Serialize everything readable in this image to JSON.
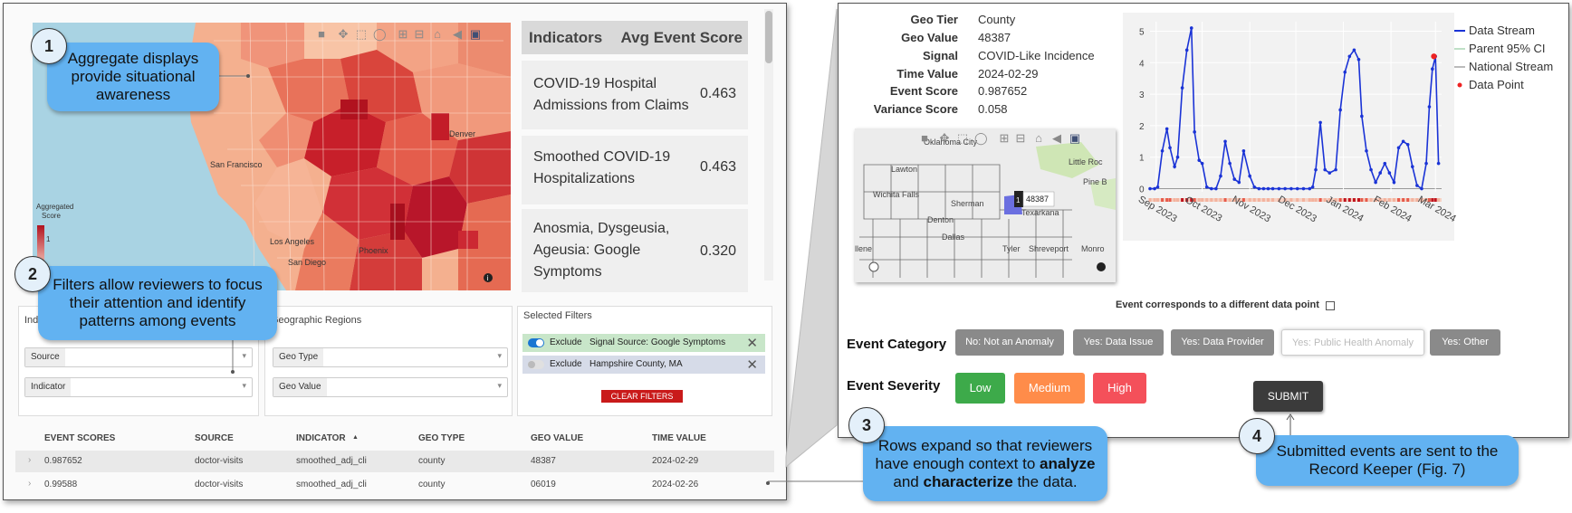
{
  "left_map": {
    "cities": [
      "Denver",
      "San Francisco",
      "Los Angeles",
      "Phoenix",
      "San Diego"
    ],
    "legend_title": "Aggregated Score",
    "legend_tick": "1"
  },
  "indicators_table": {
    "header_left": "Indicators",
    "header_right": "Avg Event Score",
    "rows": [
      {
        "name_line1": "COVID-19 Hospital",
        "name_line2": "Admissions from Claims",
        "name_line3": "",
        "score": "0.463"
      },
      {
        "name_line1": "Smoothed COVID-19",
        "name_line2": "Hospitalizations",
        "name_line3": "",
        "score": "0.463"
      },
      {
        "name_line1": "Anosmia, Dysgeusia,",
        "name_line2": "Ageusia: Google",
        "name_line3": "Symptoms",
        "score": "0.320"
      }
    ]
  },
  "filters": {
    "indicators_title": "Indicators",
    "geo_title": "Geographic Regions",
    "selected_title": "Selected Filters",
    "source_label": "Source",
    "indicator_label": "Indicator",
    "geo_type_label": "Geo Type",
    "geo_value_label": "Geo Value",
    "selected": [
      {
        "toggle": "Exclude",
        "value": "Signal Source: Google Symptoms",
        "color": "#c8e6c9"
      },
      {
        "toggle": "Exclude",
        "value": "Hampshire County, MA",
        "color": "#d6dbe8"
      }
    ],
    "clear_label": "CLEAR FILTERS"
  },
  "events_table": {
    "columns": [
      "EVENT SCORES",
      "SOURCE",
      "INDICATOR",
      "GEO TYPE",
      "GEO VALUE",
      "TIME VALUE"
    ],
    "sort_indicator": "▲",
    "rows": [
      {
        "score": "0.987652",
        "source": "doctor-visits",
        "indicator": "smoothed_adj_cli",
        "geo_type": "county",
        "geo_value": "48387",
        "time": "2024-02-29"
      },
      {
        "score": "0.99588",
        "source": "doctor-visits",
        "indicator": "smoothed_adj_cli",
        "geo_type": "county",
        "geo_value": "06019",
        "time": "2024-02-26"
      }
    ]
  },
  "detail": {
    "meta": [
      {
        "label": "Geo Tier",
        "value": "County"
      },
      {
        "label": "Geo Value",
        "value": "48387"
      },
      {
        "label": "Signal",
        "value": "COVID-Like Incidence"
      },
      {
        "label": "Time Value",
        "value": "2024-02-29"
      },
      {
        "label": "Event Score",
        "value": "0.987652"
      },
      {
        "label": "Variance Score",
        "value": "0.058"
      }
    ],
    "mini_map": {
      "cities": [
        "Oklahoma City",
        "Lawton",
        "Little Roc",
        "Wichita Falls",
        "Sherman",
        "Pine B",
        "Texarkana",
        "Denton",
        "Dallas",
        "Tyler",
        "Shreveport",
        "Monro",
        "llene"
      ],
      "tooltip_index": "1",
      "tooltip_value": "48387"
    },
    "different_point_label": "Event corresponds to a different data point",
    "category_label": "Event Category",
    "categories": [
      "No: Not an Anomaly",
      "Yes: Data Issue",
      "Yes: Data Provider",
      "Yes: Public Health Anomaly",
      "Yes: Other"
    ],
    "severity_label": "Event Severity",
    "severities": [
      {
        "label": "Low",
        "color": "#3daa4a"
      },
      {
        "label": "Medium",
        "color": "#ff8c4a"
      },
      {
        "label": "High",
        "color": "#f4505a"
      }
    ],
    "submit_label": "SUBMIT"
  },
  "chart_data": {
    "type": "line",
    "title": "",
    "xlabel": "",
    "ylabel": "",
    "ylim": [
      -0.1,
      5.3
    ],
    "yticks": [
      0,
      1,
      2,
      3,
      4,
      5
    ],
    "xticks": [
      "Sep 2023",
      "Oct 2023",
      "Nov 2023",
      "Dec 2023",
      "Jan 2024",
      "Feb 2024",
      "Mar 2024"
    ],
    "x_range": [
      "2023-08-28",
      "2024-03-05"
    ],
    "legend": [
      "Data Stream",
      "Parent 95% CI",
      "National Stream",
      "Data Point"
    ],
    "legend_position": "right",
    "grid": true,
    "series": [
      {
        "name": "Data Stream",
        "color": "#1a33d6",
        "x": [
          "2023-08-28",
          "2023-08-31",
          "2023-09-02",
          "2023-09-05",
          "2023-09-08",
          "2023-09-10",
          "2023-09-13",
          "2023-09-15",
          "2023-09-18",
          "2023-09-21",
          "2023-09-24",
          "2023-09-26",
          "2023-09-29",
          "2023-10-01",
          "2023-10-04",
          "2023-10-07",
          "2023-10-10",
          "2023-10-13",
          "2023-10-16",
          "2023-10-19",
          "2023-10-22",
          "2023-10-25",
          "2023-10-28",
          "2023-11-01",
          "2023-11-04",
          "2023-11-07",
          "2023-11-10",
          "2023-11-13",
          "2023-11-16",
          "2023-11-20",
          "2023-11-24",
          "2023-11-28",
          "2023-12-02",
          "2023-12-06",
          "2023-12-10",
          "2023-12-12",
          "2023-12-14",
          "2023-12-17",
          "2023-12-20",
          "2023-12-23",
          "2023-12-27",
          "2023-12-30",
          "2024-01-02",
          "2024-01-05",
          "2024-01-08",
          "2024-01-11",
          "2024-01-13",
          "2024-01-16",
          "2024-01-19",
          "2024-01-22",
          "2024-01-25",
          "2024-01-28",
          "2024-01-31",
          "2024-02-03",
          "2024-02-06",
          "2024-02-09",
          "2024-02-12",
          "2024-02-15",
          "2024-02-18",
          "2024-02-21",
          "2024-02-24",
          "2024-02-26",
          "2024-02-28",
          "2024-03-01",
          "2024-03-03"
        ],
        "y": [
          0,
          0,
          0.05,
          1.2,
          1.9,
          1.3,
          0.7,
          1.0,
          3.2,
          4.4,
          5.1,
          1.8,
          0.9,
          0.8,
          0.05,
          0,
          0,
          0.4,
          1.5,
          0.8,
          0.3,
          0.2,
          1.2,
          0.4,
          0.05,
          0,
          0,
          0,
          0,
          0,
          0,
          0,
          0,
          0,
          0,
          0.05,
          0.6,
          2.1,
          0.6,
          0.5,
          0.6,
          2.5,
          3.7,
          4.2,
          4.4,
          4.1,
          2.3,
          1.2,
          0.6,
          0.2,
          0.5,
          0.8,
          0.5,
          0.2,
          1.3,
          1.5,
          1.4,
          0.7,
          0.1,
          0,
          0.8,
          2.6,
          3.8,
          4.2,
          0.8
        ]
      },
      {
        "name": "Data Point",
        "color": "#ee2222",
        "x": [
          "2024-02-29"
        ],
        "y": [
          4.2
        ]
      }
    ]
  },
  "callouts": [
    {
      "num": "1",
      "text": "Aggregate displays provide situational awareness"
    },
    {
      "num": "2",
      "text": "Filters allow reviewers to focus their attention and identify patterns among events"
    },
    {
      "num": "3",
      "text_a": "Rows expand so that reviewers have enough context to ",
      "bold_1": "analyze",
      "text_b": " and ",
      "bold_2": "characterize",
      "text_c": " the data."
    },
    {
      "num": "4",
      "text": "Submitted events are sent to the Record Keeper (Fig. 7)"
    }
  ]
}
